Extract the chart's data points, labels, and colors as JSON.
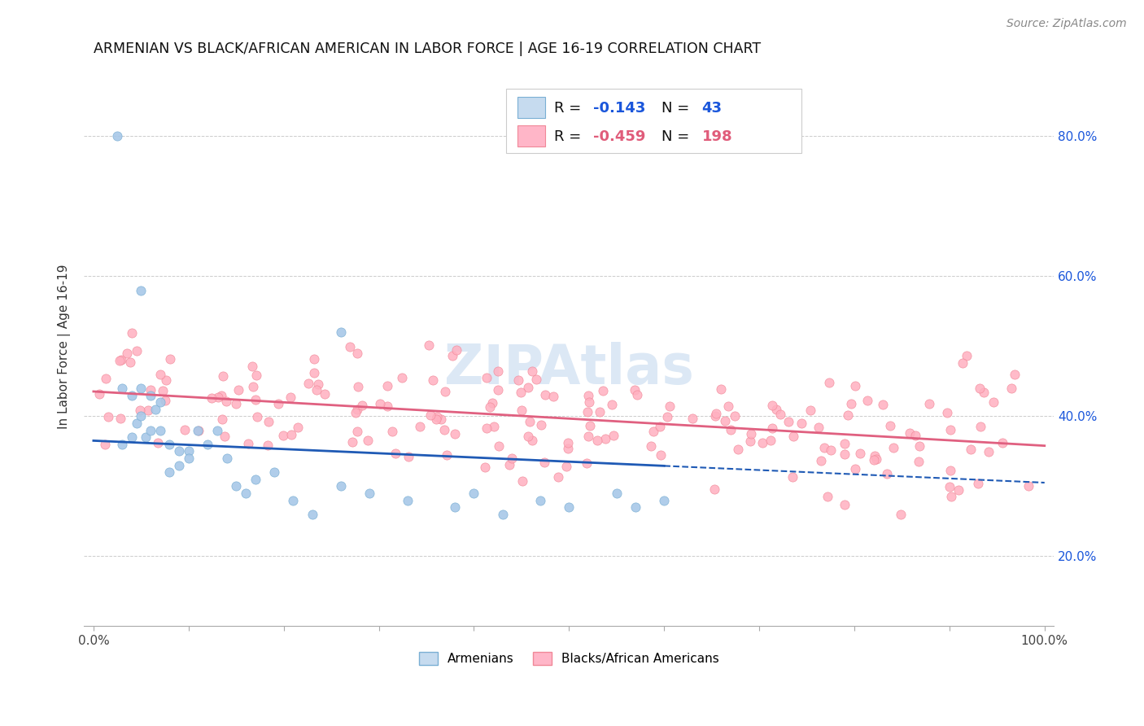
{
  "title": "ARMENIAN VS BLACK/AFRICAN AMERICAN IN LABOR FORCE | AGE 16-19 CORRELATION CHART",
  "source": "Source: ZipAtlas.com",
  "ylabel": "In Labor Force | Age 16-19",
  "legend_label1": "Armenians",
  "legend_label2": "Blacks/African Americans",
  "r1": "-0.143",
  "n1": "43",
  "r2": "-0.459",
  "n2": "198",
  "blue_scatter_color": "#a8c8e8",
  "blue_edge_color": "#7aafd4",
  "pink_scatter_color": "#ffb0c0",
  "pink_edge_color": "#f08898",
  "trend_blue": "#1f5ab5",
  "trend_pink": "#e06080",
  "legend_blue_fill": "#c6dbef",
  "legend_blue_edge": "#7aafd4",
  "legend_pink_fill": "#ffb6c8",
  "legend_pink_edge": "#f08898",
  "legend_text_color": "#1a56db",
  "watermark_color": "#dce8f5",
  "grid_color": "#cccccc",
  "right_tick_color": "#1a56db",
  "xlim": [
    0.0,
    1.0
  ],
  "ylim": [
    0.1,
    0.9
  ],
  "yticks": [
    0.2,
    0.4,
    0.6,
    0.8
  ],
  "ytick_labels": [
    "20.0%",
    "40.0%",
    "60.0%",
    "80.0%"
  ],
  "xticks": [
    0.0,
    0.1,
    0.2,
    0.3,
    0.4,
    0.5,
    0.6,
    0.7,
    0.8,
    0.9,
    1.0
  ],
  "xtick_labels_show": [
    "0.0%",
    "",
    "",
    "",
    "",
    "",
    "",
    "",
    "",
    "",
    "100.0%"
  ]
}
